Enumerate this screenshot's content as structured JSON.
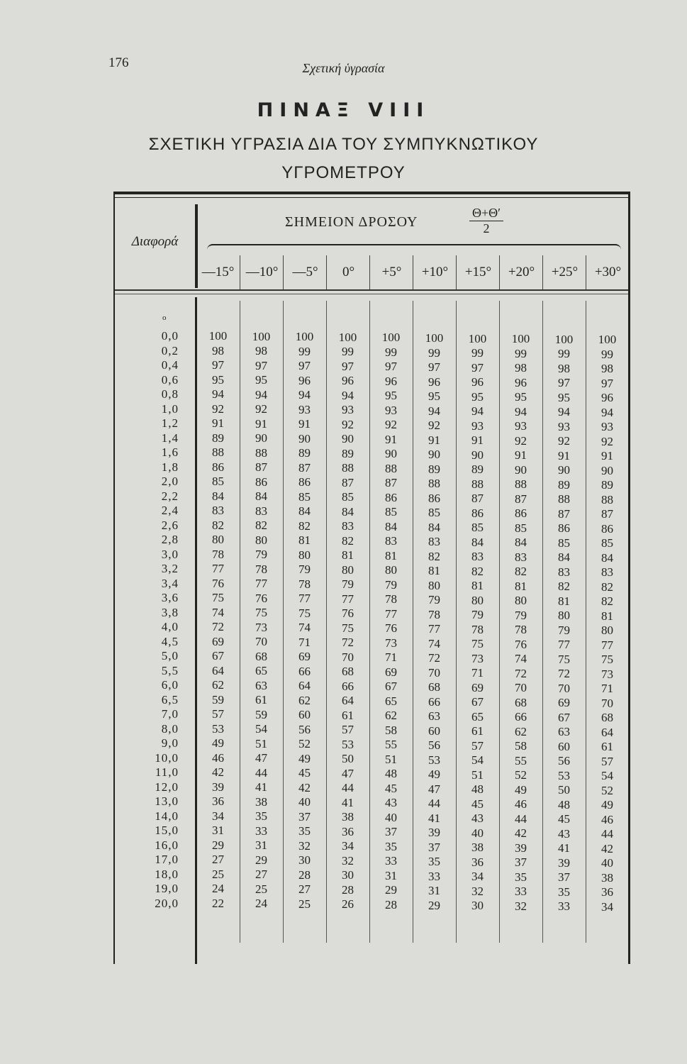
{
  "page_number": "176",
  "running_head": "Σχετική ὑγρασία",
  "title": "ΠΙΝΑΞ VIII",
  "subtitle_line1": "ΣΧΕΤΙΚΗ ΥΓΡΑΣΙΑ ΔΙΑ ΤΟΥ ΣΥΜΠΥΚΝΩΤΙΚΟΥ",
  "subtitle_line2": "ΥΓΡΟΜΕΤΡΟΥ",
  "table": {
    "row_header": "Διαφορά",
    "group_header": "ΣΗΜΕΙΟΝ ΔΡΟΣΟΥ",
    "fraction_numerator": "Θ+Θ′",
    "fraction_denominator": "2",
    "columns": [
      "—15°",
      "—10°",
      "—5°",
      "0°",
      "+5°",
      "+10°",
      "+15°",
      "+20°",
      "+25°",
      "+30°"
    ],
    "rows": [
      {
        "diff": "0,0",
        "values": [
          100,
          100,
          100,
          100,
          100,
          100,
          100,
          100,
          100,
          100
        ]
      },
      {
        "diff": "0,2",
        "values": [
          98,
          98,
          99,
          99,
          99,
          99,
          99,
          99,
          99,
          99
        ]
      },
      {
        "diff": "0,4",
        "values": [
          97,
          97,
          97,
          97,
          97,
          97,
          97,
          98,
          98,
          98
        ]
      },
      {
        "diff": "0,6",
        "values": [
          95,
          95,
          96,
          96,
          96,
          96,
          96,
          96,
          97,
          97
        ]
      },
      {
        "diff": "0,8",
        "values": [
          94,
          94,
          94,
          94,
          95,
          95,
          95,
          95,
          95,
          96
        ]
      },
      {
        "diff": "1,0",
        "values": [
          92,
          92,
          93,
          93,
          93,
          94,
          94,
          94,
          94,
          94
        ]
      },
      {
        "diff": "1,2",
        "values": [
          91,
          91,
          91,
          92,
          92,
          92,
          93,
          93,
          93,
          93
        ]
      },
      {
        "diff": "1,4",
        "values": [
          89,
          90,
          90,
          90,
          91,
          91,
          91,
          92,
          92,
          92
        ]
      },
      {
        "diff": "1,6",
        "values": [
          88,
          88,
          89,
          89,
          90,
          90,
          90,
          91,
          91,
          91
        ]
      },
      {
        "diff": "1,8",
        "values": [
          86,
          87,
          87,
          88,
          88,
          89,
          89,
          90,
          90,
          90
        ]
      },
      {
        "diff": "2,0",
        "values": [
          85,
          86,
          86,
          87,
          87,
          88,
          88,
          88,
          89,
          89
        ]
      },
      {
        "diff": "2,2",
        "values": [
          84,
          84,
          85,
          85,
          86,
          86,
          87,
          87,
          88,
          88
        ]
      },
      {
        "diff": "2,4",
        "values": [
          83,
          83,
          84,
          84,
          85,
          85,
          86,
          86,
          87,
          87
        ]
      },
      {
        "diff": "2,6",
        "values": [
          82,
          82,
          82,
          83,
          84,
          84,
          85,
          85,
          86,
          86
        ]
      },
      {
        "diff": "2,8",
        "values": [
          80,
          80,
          81,
          82,
          83,
          83,
          84,
          84,
          85,
          85
        ]
      },
      {
        "diff": "3,0",
        "values": [
          78,
          79,
          80,
          81,
          81,
          82,
          83,
          83,
          84,
          84
        ]
      },
      {
        "diff": "3,2",
        "values": [
          77,
          78,
          79,
          80,
          80,
          81,
          82,
          82,
          83,
          83
        ]
      },
      {
        "diff": "3,4",
        "values": [
          76,
          77,
          78,
          79,
          79,
          80,
          81,
          81,
          82,
          82
        ]
      },
      {
        "diff": "3,6",
        "values": [
          75,
          76,
          77,
          77,
          78,
          79,
          80,
          80,
          81,
          82
        ]
      },
      {
        "diff": "3,8",
        "values": [
          74,
          75,
          75,
          76,
          77,
          78,
          79,
          79,
          80,
          81
        ]
      },
      {
        "diff": "4,0",
        "values": [
          72,
          73,
          74,
          75,
          76,
          77,
          78,
          78,
          79,
          80
        ]
      },
      {
        "diff": "4,5",
        "values": [
          69,
          70,
          71,
          72,
          73,
          74,
          75,
          76,
          77,
          77
        ]
      },
      {
        "diff": "5,0",
        "values": [
          67,
          68,
          69,
          70,
          71,
          72,
          73,
          74,
          75,
          75
        ]
      },
      {
        "diff": "5,5",
        "values": [
          64,
          65,
          66,
          68,
          69,
          70,
          71,
          72,
          72,
          73
        ]
      },
      {
        "diff": "6,0",
        "values": [
          62,
          63,
          64,
          66,
          67,
          68,
          69,
          70,
          70,
          71
        ]
      },
      {
        "diff": "6,5",
        "values": [
          59,
          61,
          62,
          64,
          65,
          66,
          67,
          68,
          69,
          70
        ]
      },
      {
        "diff": "7,0",
        "values": [
          57,
          59,
          60,
          61,
          62,
          63,
          65,
          66,
          67,
          68
        ]
      },
      {
        "diff": "8,0",
        "values": [
          53,
          54,
          56,
          57,
          58,
          60,
          61,
          62,
          63,
          64
        ]
      },
      {
        "diff": "9,0",
        "values": [
          49,
          51,
          52,
          53,
          55,
          56,
          57,
          58,
          60,
          61
        ]
      },
      {
        "diff": "10,0",
        "values": [
          46,
          47,
          49,
          50,
          51,
          53,
          54,
          55,
          56,
          57
        ]
      },
      {
        "diff": "11,0",
        "values": [
          42,
          44,
          45,
          47,
          48,
          49,
          51,
          52,
          53,
          54
        ]
      },
      {
        "diff": "12,0",
        "values": [
          39,
          41,
          42,
          44,
          45,
          47,
          48,
          49,
          50,
          52
        ]
      },
      {
        "diff": "13,0",
        "values": [
          36,
          38,
          40,
          41,
          43,
          44,
          45,
          46,
          48,
          49
        ]
      },
      {
        "diff": "14,0",
        "values": [
          34,
          35,
          37,
          38,
          40,
          41,
          43,
          44,
          45,
          46
        ]
      },
      {
        "diff": "15,0",
        "values": [
          31,
          33,
          35,
          36,
          37,
          39,
          40,
          42,
          43,
          44
        ]
      },
      {
        "diff": "16,0",
        "values": [
          29,
          31,
          32,
          34,
          35,
          37,
          38,
          39,
          41,
          42
        ]
      },
      {
        "diff": "17,0",
        "values": [
          27,
          29,
          30,
          32,
          33,
          35,
          36,
          37,
          39,
          40
        ]
      },
      {
        "diff": "18,0",
        "values": [
          25,
          27,
          28,
          30,
          31,
          33,
          34,
          35,
          37,
          38
        ]
      },
      {
        "diff": "19,0",
        "values": [
          24,
          25,
          27,
          28,
          29,
          31,
          32,
          33,
          35,
          36
        ]
      },
      {
        "diff": "20,0",
        "values": [
          22,
          24,
          25,
          26,
          28,
          29,
          30,
          32,
          33,
          34
        ]
      }
    ]
  }
}
